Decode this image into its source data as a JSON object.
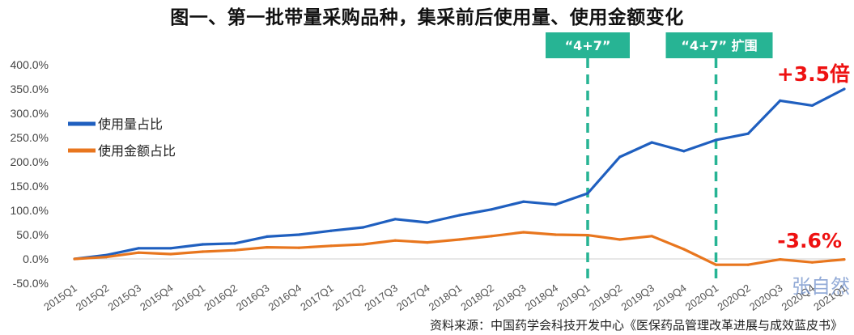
{
  "title": "图一、第一批带量采购品种，集采前后使用量、使用金额变化",
  "source": "资料来源：中国药学会科技开发中心《医保药品管理改革进展与成效蓝皮书》",
  "watermark": "张自然",
  "colors": {
    "usage": "#1f5fbf",
    "amount": "#e8761e",
    "marker": "#27b494",
    "grid": "#d9d9d9",
    "annotation": "#ee1111"
  },
  "chart_data": {
    "type": "line",
    "categories": [
      "2015Q1",
      "2015Q2",
      "2015Q3",
      "2015Q4",
      "2016Q1",
      "2016Q2",
      "2016Q3",
      "2016Q4",
      "2017Q1",
      "2017Q2",
      "2017Q3",
      "2017Q4",
      "2018Q1",
      "2018Q2",
      "2018Q3",
      "2018Q4",
      "2019Q1",
      "2019Q2",
      "2019Q3",
      "2019Q4",
      "2020Q1",
      "2020Q2",
      "2020Q3",
      "2020Q4",
      "2021Q1"
    ],
    "series": [
      {
        "name": "使用量占比",
        "color": "#1f5fbf",
        "values": [
          0,
          8,
          22,
          22,
          30,
          32,
          46,
          50,
          58,
          65,
          82,
          75,
          90,
          102,
          118,
          112,
          135,
          210,
          240,
          222,
          245,
          258,
          326,
          316,
          350
        ]
      },
      {
        "name": "使用金额占比",
        "color": "#e8761e",
        "values": [
          0,
          4,
          13,
          10,
          15,
          18,
          24,
          23,
          27,
          30,
          38,
          34,
          40,
          47,
          55,
          50,
          49,
          40,
          47,
          20,
          -12,
          -12,
          -1,
          -7,
          -1
        ]
      }
    ],
    "ylim": [
      -50,
      400
    ],
    "y_ticks": [
      "-50.0%",
      "0.0%",
      "50.0%",
      "100.0%",
      "150.0%",
      "200.0%",
      "250.0%",
      "300.0%",
      "350.0%",
      "400.0%"
    ],
    "grid": false,
    "legend_position": "top-left",
    "markers": [
      {
        "label": "“4+7”",
        "at": "2019Q1"
      },
      {
        "label": "“4+7” 扩围",
        "at": "2020Q1"
      }
    ],
    "annotations": [
      {
        "text": "+3.5倍",
        "series": "使用量占比"
      },
      {
        "text": "-3.6%",
        "series": "使用金额占比"
      }
    ]
  }
}
